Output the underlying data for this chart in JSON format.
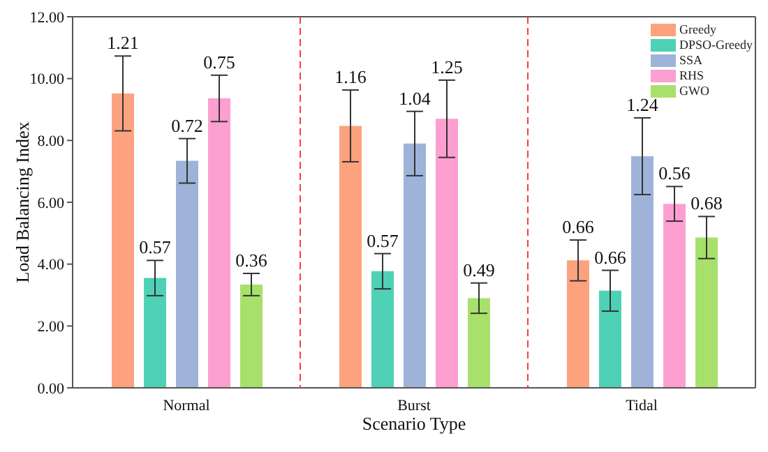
{
  "chart_data": {
    "type": "bar",
    "xlabel": "Scenario Type",
    "ylabel": "Load Balancing Index",
    "categories": [
      "Normal",
      "Burst",
      "Tidal"
    ],
    "series": [
      {
        "name": "Greedy",
        "color": "#fca27e",
        "values": [
          9.52,
          8.47,
          4.12
        ],
        "errors": [
          1.21,
          1.16,
          0.66
        ]
      },
      {
        "name": "DPSO-Greedy",
        "color": "#4fd1b5",
        "values": [
          3.55,
          3.77,
          3.14
        ],
        "errors": [
          0.57,
          0.57,
          0.66
        ]
      },
      {
        "name": "SSA",
        "color": "#9fb3d9",
        "values": [
          7.34,
          7.9,
          7.49
        ],
        "errors": [
          0.72,
          1.04,
          1.24
        ]
      },
      {
        "name": "RHS",
        "color": "#fd9fd0",
        "values": [
          9.36,
          8.7,
          5.95
        ],
        "errors": [
          0.75,
          1.25,
          0.56
        ]
      },
      {
        "name": "GWO",
        "color": "#a8e06c",
        "values": [
          3.34,
          2.9,
          4.86
        ],
        "errors": [
          0.36,
          0.49,
          0.68
        ]
      }
    ],
    "annotations": [
      "1.21",
      "0.57",
      "0.72",
      "0.75",
      "0.36",
      "1.16",
      "0.57",
      "1.04",
      "1.25",
      "0.49",
      "0.66",
      "0.66",
      "1.24",
      "0.56",
      "0.68"
    ],
    "ylim": [
      0,
      12
    ],
    "yticks": [
      {
        "value": 0,
        "label": "0.00"
      },
      {
        "value": 2,
        "label": "2.00"
      },
      {
        "value": 4,
        "label": "4.00"
      },
      {
        "value": 6,
        "label": "6.00"
      },
      {
        "value": 8,
        "label": "8.00"
      },
      {
        "value": 10,
        "label": "10.00"
      },
      {
        "value": 12,
        "label": "12.00"
      }
    ],
    "legend": "top right"
  }
}
